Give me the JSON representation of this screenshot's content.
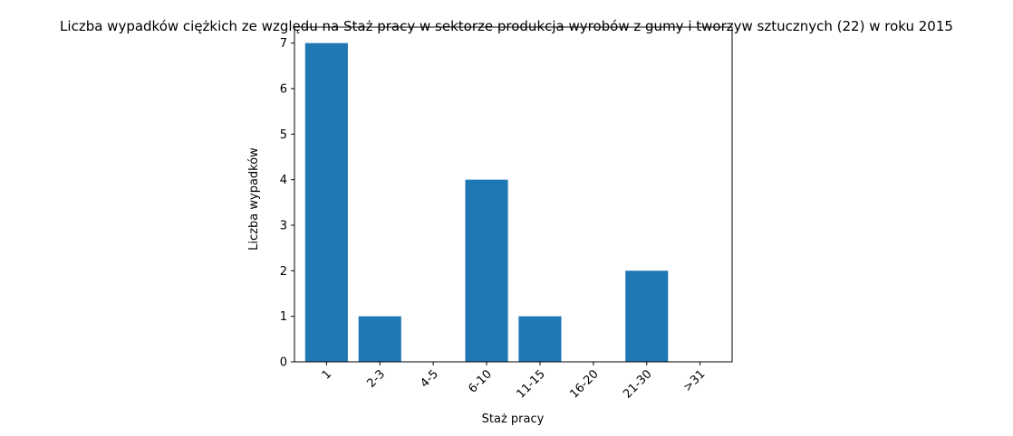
{
  "chart_data": {
    "type": "bar",
    "title": "Liczba wypadków ciężkich ze względu na Staż pracy w sektorze produkcja wyrobów z gumy i tworzyw sztucznych (22) w roku 2015",
    "xlabel": "Staż pracy",
    "ylabel": "Liczba wypadków",
    "categories": [
      "1",
      "2-3",
      "4-5",
      "6-10",
      "11-15",
      "16-20",
      "21-30",
      ">31"
    ],
    "values": [
      7,
      1,
      0,
      4,
      1,
      0,
      2,
      0
    ],
    "ylim": [
      0,
      7.35
    ],
    "yticks": [
      0,
      1,
      2,
      3,
      4,
      5,
      6,
      7
    ],
    "bar_color": "#1f77b4",
    "grid": false,
    "xtick_rotation_deg": 45
  }
}
